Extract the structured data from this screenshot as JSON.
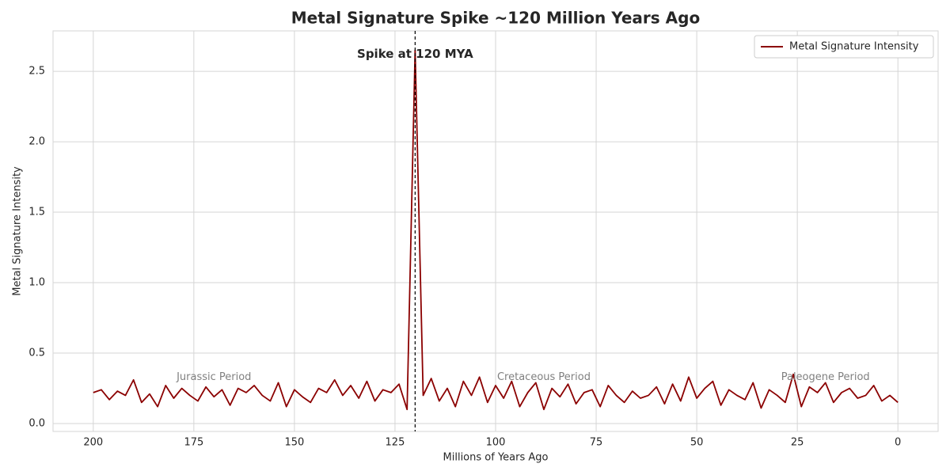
{
  "chart_data": {
    "type": "line",
    "title": "Metal Signature Spike ~120 Million Years Ago",
    "xlabel": "Millions of Years Ago",
    "ylabel": "Metal Signature Intensity",
    "x": [
      200,
      198,
      196,
      194,
      192,
      190,
      188,
      186,
      184,
      182,
      180,
      178,
      176,
      174,
      172,
      170,
      168,
      166,
      164,
      162,
      160,
      158,
      156,
      154,
      152,
      150,
      148,
      146,
      144,
      142,
      140,
      138,
      136,
      134,
      132,
      130,
      128,
      126,
      124,
      122,
      120,
      118,
      116,
      114,
      112,
      110,
      108,
      106,
      104,
      102,
      100,
      98,
      96,
      94,
      92,
      90,
      88,
      86,
      84,
      82,
      80,
      78,
      76,
      74,
      72,
      70,
      68,
      66,
      64,
      62,
      60,
      58,
      56,
      54,
      52,
      50,
      48,
      46,
      44,
      42,
      40,
      38,
      36,
      34,
      32,
      30,
      28,
      26,
      24,
      22,
      20,
      18,
      16,
      14,
      12,
      10,
      8,
      6,
      4,
      2,
      0
    ],
    "series": [
      {
        "name": "Metal Signature Intensity",
        "color": "#8b0000",
        "values": [
          0.22,
          0.24,
          0.17,
          0.23,
          0.2,
          0.31,
          0.15,
          0.21,
          0.12,
          0.27,
          0.18,
          0.25,
          0.2,
          0.16,
          0.26,
          0.19,
          0.24,
          0.13,
          0.25,
          0.22,
          0.27,
          0.2,
          0.16,
          0.29,
          0.12,
          0.24,
          0.19,
          0.15,
          0.25,
          0.22,
          0.31,
          0.2,
          0.27,
          0.18,
          0.3,
          0.16,
          0.24,
          0.22,
          0.28,
          0.1,
          2.65,
          0.2,
          0.32,
          0.16,
          0.25,
          0.12,
          0.3,
          0.2,
          0.33,
          0.15,
          0.27,
          0.18,
          0.3,
          0.12,
          0.22,
          0.29,
          0.1,
          0.25,
          0.19,
          0.28,
          0.14,
          0.22,
          0.24,
          0.12,
          0.27,
          0.2,
          0.15,
          0.23,
          0.18,
          0.2,
          0.26,
          0.14,
          0.28,
          0.16,
          0.33,
          0.18,
          0.25,
          0.3,
          0.13,
          0.24,
          0.2,
          0.17,
          0.29,
          0.11,
          0.24,
          0.2,
          0.15,
          0.35,
          0.12,
          0.26,
          0.22,
          0.29,
          0.15,
          0.22,
          0.25,
          0.18,
          0.2,
          0.27,
          0.16,
          0.2,
          0.15
        ]
      }
    ],
    "xlim": [
      210,
      -10
    ],
    "ylim": [
      -0.056,
      2.787
    ],
    "xticks": [
      200,
      175,
      150,
      125,
      100,
      75,
      50,
      25,
      0
    ],
    "yticks": [
      {
        "value": 0,
        "label": "0.0"
      },
      0.5,
      {
        "value": 1,
        "label": "1.0"
      },
      1.5,
      {
        "value": 2,
        "label": "2.0"
      },
      2.5
    ],
    "vline": 120,
    "annotations": [
      {
        "text": "Spike at 120 MYA",
        "x": 120,
        "y": 2.62,
        "bold": true
      },
      {
        "text": "Jurassic Period",
        "x": 170,
        "y": 0.33
      },
      {
        "text": "Cretaceous Period",
        "x": 88,
        "y": 0.33
      },
      {
        "text": "Paleogene Period",
        "x": 18,
        "y": 0.33
      }
    ],
    "grid": true,
    "legend": "upper right"
  }
}
